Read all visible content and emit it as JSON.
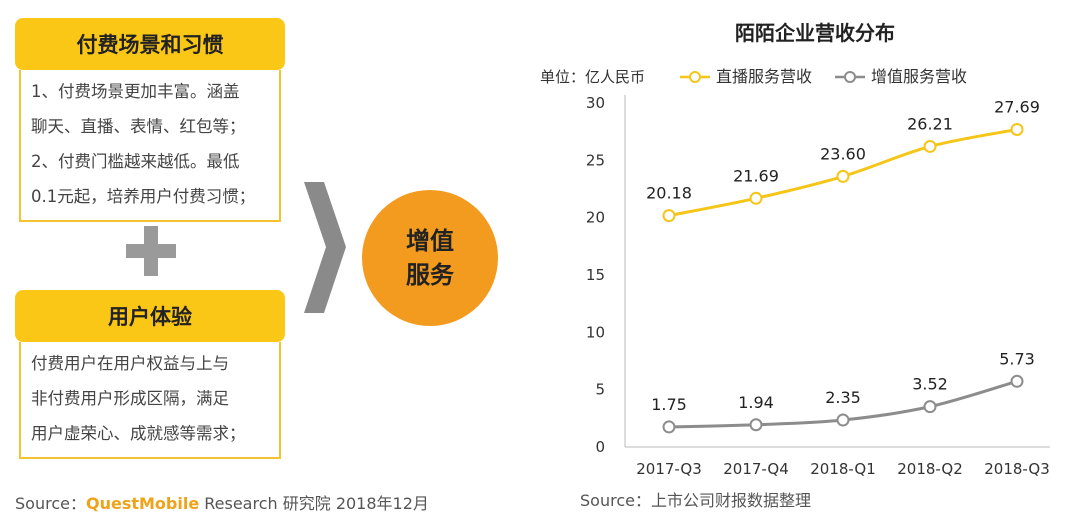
{
  "left_panel": {
    "card1": {
      "title": "付费场景和习惯",
      "lines": [
        "1、付费场景更加丰富。涵盖",
        "聊天、直播、表情、红包等；",
        "2、付费门槛越来越低。最低",
        "0.1元起，培养用户付费习惯；"
      ]
    },
    "card2": {
      "title": "用户体验",
      "lines": [
        "付费用户在用户权益与上与",
        "非付费用户形成区隔，满足",
        "用户虚荣心、成就感等需求；"
      ]
    },
    "circle_lines": [
      "增值",
      "服务"
    ],
    "source_prefix": "Source：",
    "source_brand": "QuestMobile",
    "source_suffix": " Research 研究院 2018年12月"
  },
  "chart_data": {
    "type": "line",
    "title": "陌陌企业营收分布",
    "unit_label": "单位：亿人民币",
    "categories": [
      "2017-Q3",
      "2017-Q4",
      "2018-Q1",
      "2018-Q2",
      "2018-Q3"
    ],
    "series": [
      {
        "name": "直播服务营收",
        "values": [
          20.18,
          21.69,
          23.6,
          26.21,
          27.69
        ],
        "color": "#f5c518"
      },
      {
        "name": "增值服务营收",
        "values": [
          1.75,
          1.94,
          2.35,
          3.52,
          5.73
        ],
        "color": "#8c8c8c"
      }
    ],
    "data_labels": [
      [
        "20.18",
        "21.69",
        "23.60",
        "26.21",
        "27.69"
      ],
      [
        "1.75",
        "1.94",
        "2.35",
        "3.52",
        "5.73"
      ]
    ],
    "yticks": [
      0,
      5,
      10,
      15,
      20,
      25,
      30
    ],
    "ylim": [
      0,
      30
    ],
    "grid": false,
    "legend_position": "top",
    "source": "Source：上市公司财报数据整理"
  },
  "colors": {
    "accent_yellow": "#fbc717",
    "accent_orange": "#f39b1f",
    "gray": "#9a9a9a"
  },
  "icons": {
    "plus": "plus-icon",
    "chevron": "chevron-right-icon"
  }
}
